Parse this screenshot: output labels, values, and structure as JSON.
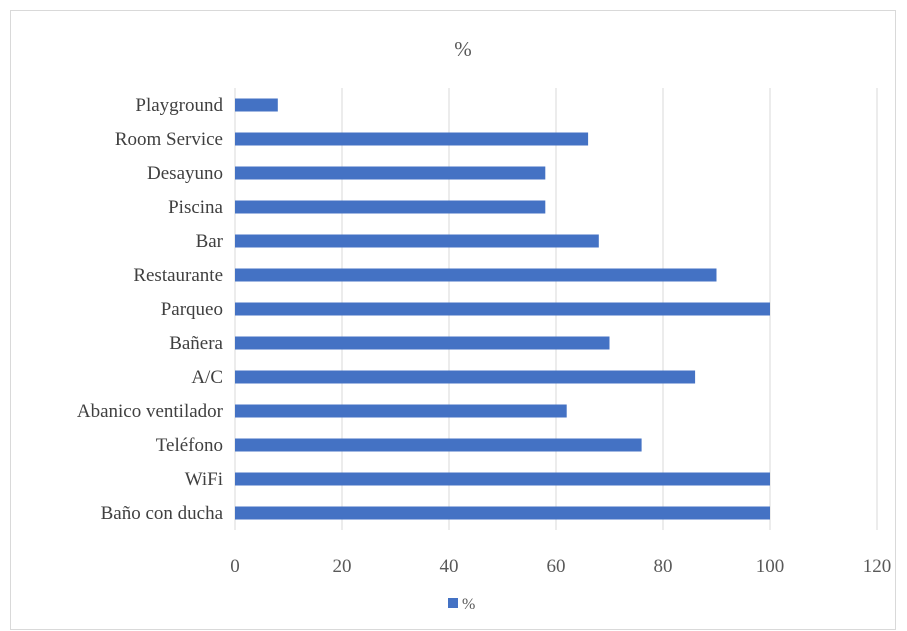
{
  "chart_data": {
    "type": "bar",
    "orientation": "horizontal",
    "title": "%",
    "categories": [
      "Playground",
      "Room Service",
      "Desayuno",
      "Piscina",
      "Bar",
      "Restaurante",
      "Parqueo",
      "Bañera",
      "A/C",
      "Abanico  ventilador",
      "Teléfono",
      "WiFi",
      "Baño con ducha"
    ],
    "series": [
      {
        "name": "%",
        "values": [
          8,
          66,
          58,
          58,
          68,
          90,
          100,
          70,
          86,
          62,
          76,
          100,
          100
        ],
        "color": "#4472c4"
      }
    ],
    "xlim": [
      0,
      120
    ],
    "xticks": [
      "0",
      "20",
      "40",
      "60",
      "80",
      "100",
      "120"
    ],
    "grid": true,
    "legend_position": "bottom"
  }
}
